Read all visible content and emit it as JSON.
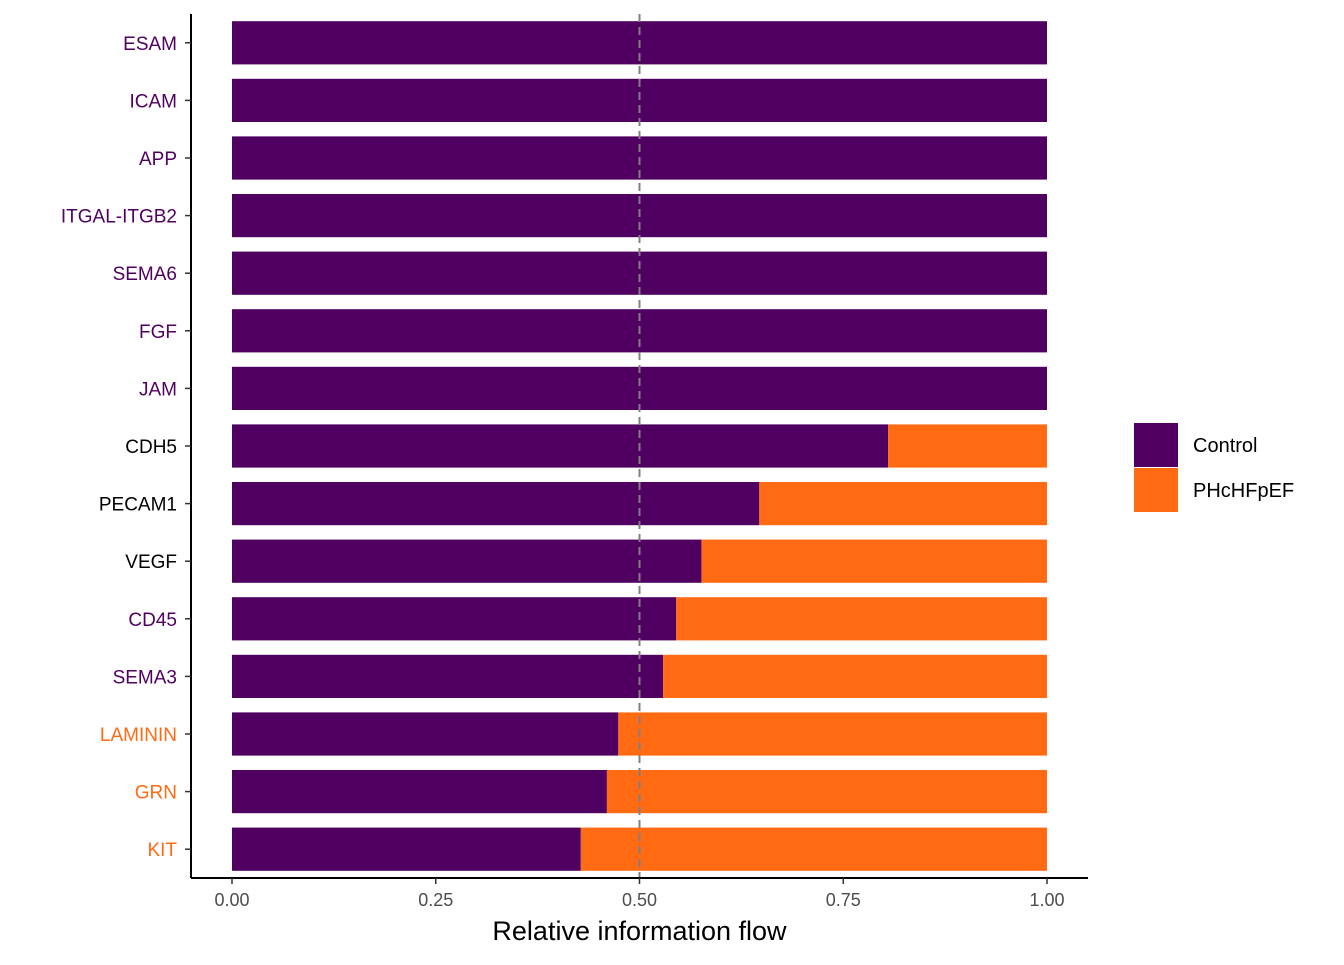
{
  "chart_data": {
    "type": "bar",
    "orientation": "horizontal",
    "stacked": true,
    "xlabel": "Relative information flow",
    "ylabel": "",
    "xlim": [
      0,
      1.05
    ],
    "x_ticks": [
      {
        "value": 0,
        "label": "0.00"
      },
      {
        "value": 0.25,
        "label": "0.25"
      },
      {
        "value": 0.5,
        "label": "0.50"
      },
      {
        "value": 0.75,
        "label": "0.75"
      },
      {
        "value": 1,
        "label": "1.00"
      }
    ],
    "reference_line": {
      "value": 0.5,
      "style": "dashed",
      "color": "#808080"
    },
    "grid": false,
    "legend_position": "right",
    "categories": [
      "ESAM",
      "ICAM",
      "APP",
      "ITGAL-ITGB2",
      "SEMA6",
      "FGF",
      "JAM",
      "CDH5",
      "PECAM1",
      "VEGF",
      "CD45",
      "SEMA3",
      "LAMININ",
      "GRN",
      "KIT"
    ],
    "category_label_colors": [
      "#4F0060",
      "#4F0060",
      "#4F0060",
      "#4F0060",
      "#4F0060",
      "#4F0060",
      "#4F0060",
      "#000000",
      "#000000",
      "#000000",
      "#4F0060",
      "#4F0060",
      "#FF6A13",
      "#FF6A13",
      "#FF6A13"
    ],
    "series": [
      {
        "name": "Control",
        "color": "#4F0060",
        "values": [
          1.0,
          1.0,
          1.0,
          1.0,
          1.0,
          1.0,
          1.0,
          0.805,
          0.647,
          0.576,
          0.545,
          0.529,
          0.474,
          0.46,
          0.428
        ]
      },
      {
        "name": "PHcHFpEF",
        "color": "#FF6A13",
        "values": [
          0.0,
          0.0,
          0.0,
          0.0,
          0.0,
          0.0,
          0.0,
          0.195,
          0.353,
          0.424,
          0.455,
          0.471,
          0.526,
          0.54,
          0.572
        ]
      }
    ]
  }
}
